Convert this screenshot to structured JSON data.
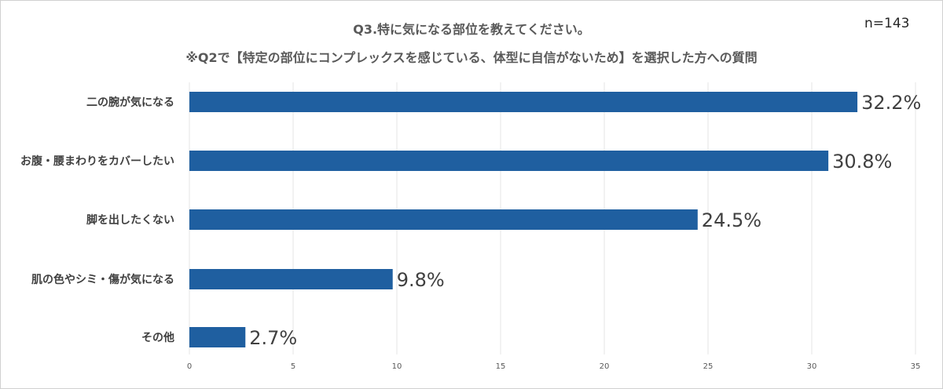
{
  "header": {
    "title_line1": "Q3.特に気になる部位を教えてください。",
    "title_line2": "※Q2で【特定の部位にコンプレックスを感じている、体型に自信がないため】を選択した方への質問",
    "sample_size": "n=143"
  },
  "colors": {
    "bar": "#1f5fa0",
    "grid": "#e4e4e4"
  },
  "chart_data": {
    "type": "bar",
    "orientation": "horizontal",
    "title": "Q3.特に気になる部位を教えてください。",
    "subtitle": "※Q2で【特定の部位にコンプレックスを感じている、体型に自信がないため】を選択した方への質問",
    "categories": [
      "二の腕が気になる",
      "お腹・腰まわりをカバーしたい",
      "脚を出したくない",
      "肌の色やシミ・傷が気になる",
      "その他"
    ],
    "values": [
      32.2,
      30.8,
      24.5,
      9.8,
      2.7
    ],
    "data_labels": [
      "32.2%",
      "30.8%",
      "24.5%",
      "9.8%",
      "2.7%"
    ],
    "xlim": [
      0,
      35
    ],
    "xticks": [
      "0",
      "5",
      "10",
      "15",
      "20",
      "25",
      "30",
      "35"
    ],
    "xtick_values": [
      0,
      5,
      10,
      15,
      20,
      25,
      30,
      35
    ],
    "xlabel": "",
    "ylabel": "",
    "grid": true
  }
}
